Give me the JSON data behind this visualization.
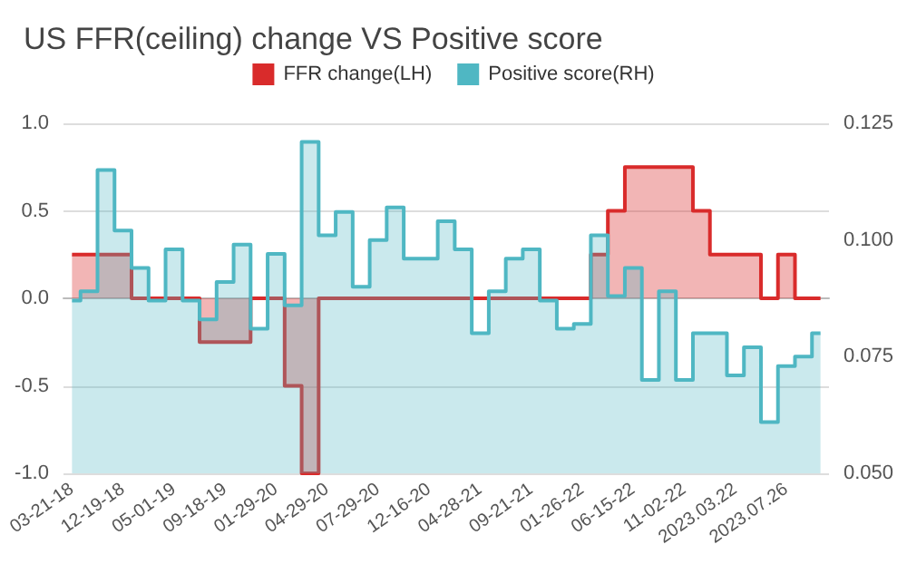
{
  "chart_data": {
    "type": "step",
    "title": "US FFR(ceiling) change VS Positive score",
    "categories": [
      "03-21-18",
      null,
      null,
      "12-19-18",
      null,
      null,
      "05-01-19",
      null,
      null,
      "09-18-19",
      null,
      null,
      "01-29-20",
      null,
      null,
      "04-29-20",
      null,
      null,
      "07-29-20",
      null,
      null,
      "12-16-20",
      null,
      null,
      "04-28-21",
      null,
      null,
      "09-21-21",
      null,
      null,
      "01-26-22",
      null,
      null,
      "06-15-22",
      null,
      null,
      "11-02-22",
      null,
      null,
      "2023.03.22",
      null,
      null,
      "2023.07.26",
      null,
      null
    ],
    "series": [
      {
        "name": "FFR change(LH)",
        "type": "area",
        "color": "#d92b2b",
        "values": [
          0.25,
          0.25,
          0.25,
          0.25,
          0,
          0,
          0,
          0,
          -0.25,
          -0.25,
          -0.25,
          0,
          0,
          -0.5,
          -1.0,
          0,
          0,
          0,
          0,
          0,
          0,
          0,
          0,
          0,
          0,
          0,
          0,
          0,
          0,
          0,
          0,
          0.25,
          0.5,
          0.75,
          0.75,
          0.75,
          0.75,
          0.5,
          0.25,
          0.25,
          0.25,
          0,
          0.25,
          0,
          0
        ]
      },
      {
        "name": "Positive score(RH)",
        "type": "area",
        "axis": "y2",
        "color": "#4fb7c3",
        "values": [
          0.087,
          0.089,
          0.115,
          0.102,
          0.094,
          0.087,
          0.098,
          0.087,
          0.083,
          0.091,
          0.099,
          0.081,
          0.097,
          0.086,
          0.121,
          0.101,
          0.106,
          0.09,
          0.1,
          0.107,
          0.096,
          0.096,
          0.104,
          0.098,
          0.08,
          0.089,
          0.096,
          0.098,
          0.087,
          0.081,
          0.082,
          0.101,
          0.088,
          0.094,
          0.07,
          0.089,
          0.07,
          0.08,
          0.08,
          0.071,
          0.077,
          0.061,
          0.073,
          0.075,
          0.08
        ]
      }
    ],
    "ylim": [
      -1.0,
      1.0
    ],
    "yticks": [
      {
        "value": -1,
        "label": "-1.0"
      },
      {
        "value": -0.5,
        "label": "-0.5"
      },
      {
        "value": 0,
        "label": "0.0"
      },
      {
        "value": 0.5,
        "label": "0.5"
      },
      {
        "value": 1,
        "label": "1.0"
      }
    ],
    "y2lim": [
      0.05,
      0.125
    ],
    "y2ticks": [
      {
        "value": 0.05,
        "label": "0.050"
      },
      {
        "value": 0.075,
        "label": "0.075"
      },
      {
        "value": 0.1,
        "label": "0.100"
      },
      {
        "value": 0.125,
        "label": "0.125"
      }
    ],
    "grid": "y",
    "legend": "top",
    "marker": "none"
  }
}
